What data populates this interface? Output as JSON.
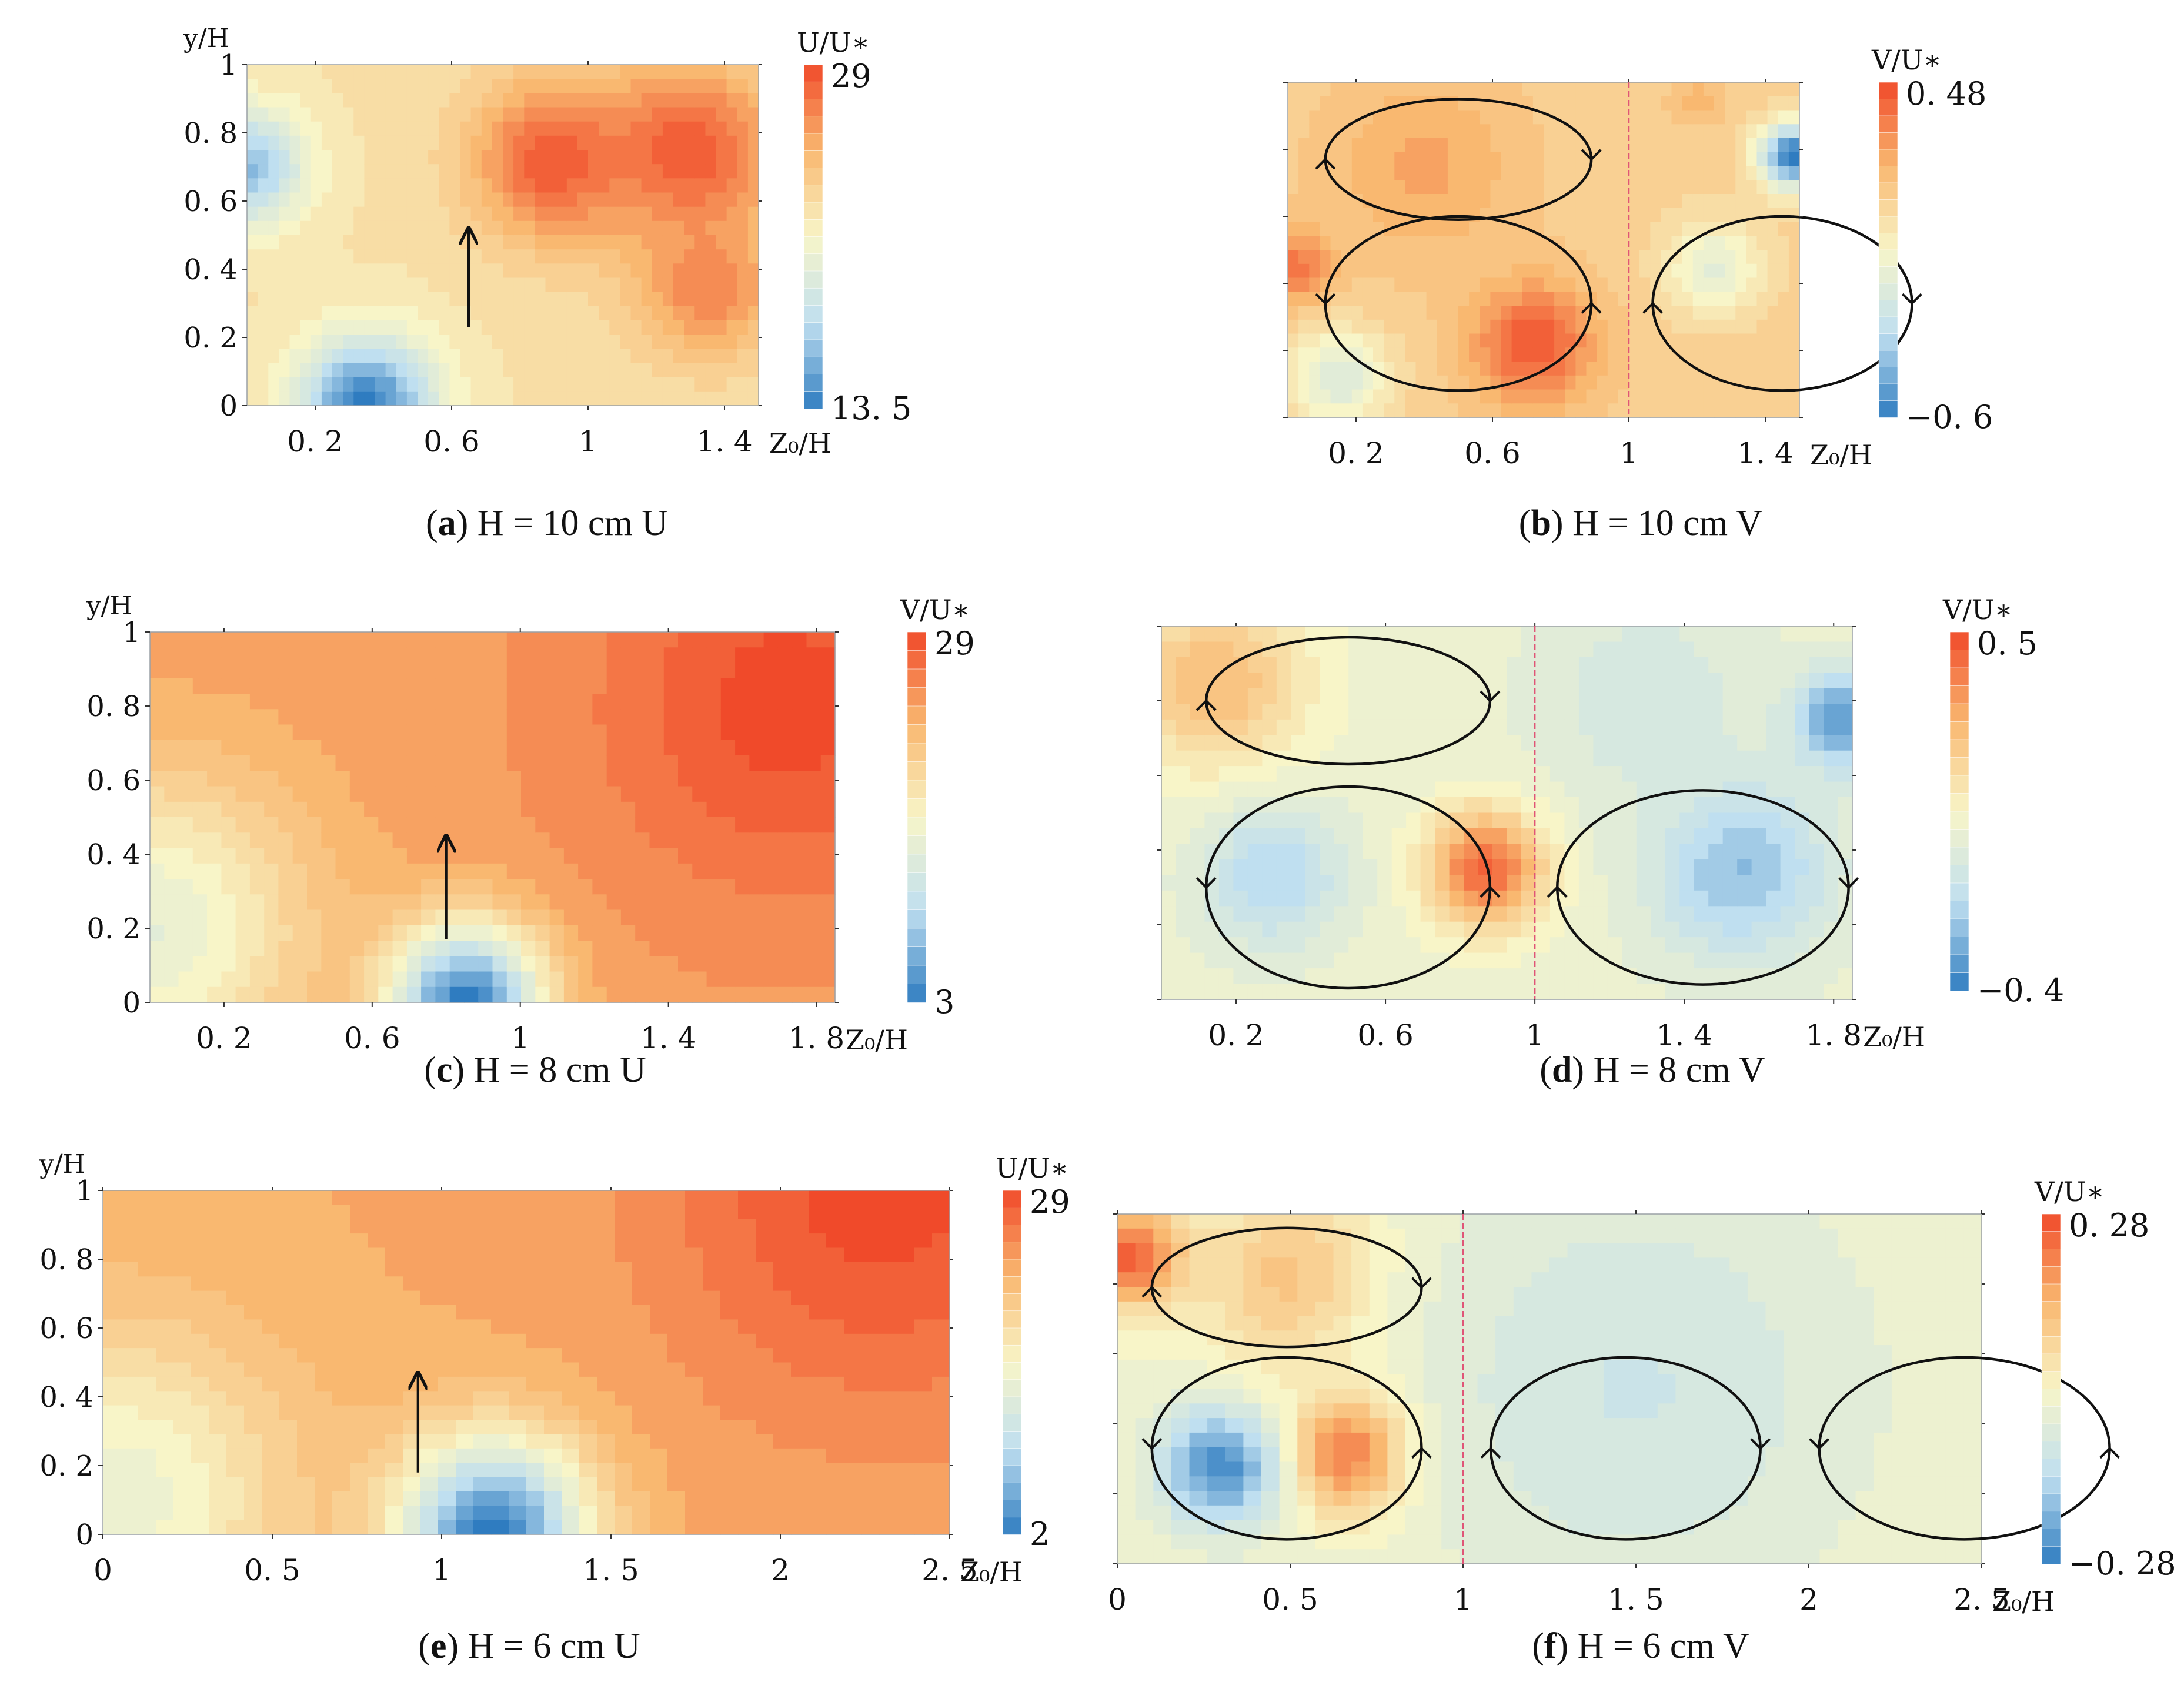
{
  "figure": {
    "panels": [
      {
        "id": "a",
        "letter": "a",
        "caption": "H = 10 cm U",
        "quantity": "U",
        "xlabel": "Z₀/H",
        "ylabel": "y/H",
        "xticks": [
          "0. 2",
          "0. 6",
          "1",
          "1. 4"
        ],
        "xtick_values": [
          0.2,
          0.6,
          1.0,
          1.4
        ],
        "xlim": [
          0,
          1.5
        ],
        "yticks": [
          "0",
          "0. 2",
          "0. 4",
          "0. 6",
          "0. 8",
          "1"
        ],
        "ytick_values": [
          0,
          0.2,
          0.4,
          0.6,
          0.8,
          1.0
        ],
        "ylim": [
          0,
          1
        ],
        "show_yticklabels": true,
        "colorbar": {
          "title": "U/U∗",
          "max_label": "29",
          "min_label": "13. 5",
          "max": 29,
          "min": 13.5,
          "levels": 20
        },
        "arrow": {
          "x": 0.65,
          "y0": 0.23,
          "y1": 0.52
        },
        "circulation_cells": [],
        "divider_x": null
      },
      {
        "id": "b",
        "letter": "b",
        "caption": "H = 10 cm V",
        "quantity": "V",
        "xlabel": "Z₀/H",
        "ylabel": "",
        "xticks": [
          "0. 2",
          "0. 6",
          "1",
          "1. 4"
        ],
        "xtick_values": [
          0.2,
          0.6,
          1.0,
          1.4
        ],
        "xlim": [
          0,
          1.5
        ],
        "yticks": [],
        "ytick_values": [
          0,
          0.2,
          0.4,
          0.6,
          0.8,
          1.0
        ],
        "ylim": [
          0,
          1
        ],
        "show_yticklabels": false,
        "colorbar": {
          "title": "V/U∗",
          "max_label": "0. 48",
          "min_label": "−0. 6",
          "max": 0.48,
          "min": -0.6,
          "levels": 20
        },
        "arrow": null,
        "circulation_cells": [
          {
            "cx": 0.5,
            "cy": 0.77,
            "rx": 0.39,
            "ry": 0.18,
            "rotation": "clockwise"
          },
          {
            "cx": 0.5,
            "cy": 0.34,
            "rx": 0.39,
            "ry": 0.26,
            "rotation": "counterclockwise"
          },
          {
            "cx": 1.45,
            "cy": 0.34,
            "rx": 0.38,
            "ry": 0.26,
            "rotation": "clockwise"
          }
        ],
        "divider_x": 1.0
      },
      {
        "id": "c",
        "letter": "c",
        "caption": "H = 8 cm U",
        "quantity": "U",
        "xlabel": "Z₀/H",
        "ylabel": "y/H",
        "xticks": [
          "0. 2",
          "0. 6",
          "1",
          "1. 4",
          "1. 8"
        ],
        "xtick_values": [
          0.2,
          0.6,
          1.0,
          1.4,
          1.8
        ],
        "xlim": [
          0,
          1.85
        ],
        "yticks": [
          "0",
          "0. 2",
          "0. 4",
          "0. 6",
          "0. 8",
          "1"
        ],
        "ytick_values": [
          0,
          0.2,
          0.4,
          0.6,
          0.8,
          1.0
        ],
        "ylim": [
          0,
          1
        ],
        "show_yticklabels": true,
        "colorbar": {
          "title": "V/U∗",
          "max_label": "29",
          "min_label": "3",
          "max": 29,
          "min": 3,
          "levels": 20
        },
        "arrow": {
          "x": 0.8,
          "y0": 0.17,
          "y1": 0.45
        },
        "circulation_cells": [],
        "divider_x": null
      },
      {
        "id": "d",
        "letter": "d",
        "caption": "H = 8 cm V",
        "quantity": "V",
        "xlabel": "Z₀/H",
        "ylabel": "",
        "xticks": [
          "0. 2",
          "0. 6",
          "1",
          "1. 4",
          "1. 8"
        ],
        "xtick_values": [
          0.2,
          0.6,
          1.0,
          1.4,
          1.8
        ],
        "xlim": [
          0,
          1.85
        ],
        "yticks": [],
        "ytick_values": [
          0,
          0.2,
          0.4,
          0.6,
          0.8,
          1.0
        ],
        "ylim": [
          0,
          1
        ],
        "show_yticklabels": false,
        "colorbar": {
          "title": "V/U∗",
          "max_label": "0. 5",
          "min_label": "−0. 4",
          "max": 0.5,
          "min": -0.4,
          "levels": 20
        },
        "arrow": null,
        "circulation_cells": [
          {
            "cx": 0.5,
            "cy": 0.8,
            "rx": 0.38,
            "ry": 0.17,
            "rotation": "clockwise"
          },
          {
            "cx": 0.5,
            "cy": 0.3,
            "rx": 0.38,
            "ry": 0.27,
            "rotation": "counterclockwise"
          },
          {
            "cx": 1.45,
            "cy": 0.3,
            "rx": 0.39,
            "ry": 0.26,
            "rotation": "clockwise"
          }
        ],
        "divider_x": 1.0
      },
      {
        "id": "e",
        "letter": "e",
        "caption": "H = 6 cm U",
        "quantity": "U",
        "xlabel": "Z₀/H",
        "ylabel": "y/H",
        "xticks": [
          "0",
          "0. 5",
          "1",
          "1. 5",
          "2",
          "2. 5"
        ],
        "xtick_values": [
          0,
          0.5,
          1.0,
          1.5,
          2.0,
          2.5
        ],
        "xlim": [
          0,
          2.5
        ],
        "yticks": [
          "0",
          "0. 2",
          "0. 4",
          "0. 6",
          "0. 8",
          "1"
        ],
        "ytick_values": [
          0,
          0.2,
          0.4,
          0.6,
          0.8,
          1.0
        ],
        "ylim": [
          0,
          1
        ],
        "show_yticklabels": true,
        "colorbar": {
          "title": "U/U∗",
          "max_label": "29",
          "min_label": "2",
          "max": 29,
          "min": 2,
          "levels": 20
        },
        "arrow": {
          "x": 0.93,
          "y0": 0.18,
          "y1": 0.47
        },
        "circulation_cells": [],
        "divider_x": null
      },
      {
        "id": "f",
        "letter": "f",
        "caption": "H = 6 cm V",
        "quantity": "V",
        "xlabel": "Z₀/H",
        "ylabel": "",
        "xticks": [
          "0",
          "0. 5",
          "1",
          "1. 5",
          "2",
          "2. 5"
        ],
        "xtick_values": [
          0,
          0.5,
          1.0,
          1.5,
          2.0,
          2.5
        ],
        "xlim": [
          0,
          2.5
        ],
        "yticks": [],
        "ytick_values": [
          0,
          0.2,
          0.4,
          0.6,
          0.8,
          1.0
        ],
        "ylim": [
          0,
          1
        ],
        "show_yticklabels": false,
        "colorbar": {
          "title": "V/U∗",
          "max_label": "0. 28",
          "min_label": "−0. 28",
          "max": 0.28,
          "min": -0.28,
          "levels": 20
        },
        "arrow": null,
        "circulation_cells": [
          {
            "cx": 0.49,
            "cy": 0.79,
            "rx": 0.39,
            "ry": 0.17,
            "rotation": "clockwise"
          },
          {
            "cx": 0.49,
            "cy": 0.33,
            "rx": 0.39,
            "ry": 0.26,
            "rotation": "counterclockwise"
          },
          {
            "cx": 1.47,
            "cy": 0.33,
            "rx": 0.39,
            "ry": 0.26,
            "rotation": "clockwise"
          },
          {
            "cx": 2.45,
            "cy": 0.33,
            "rx": 0.42,
            "ry": 0.26,
            "rotation": "counterclockwise"
          }
        ],
        "divider_x": 1.0
      }
    ]
  },
  "chart_data": [
    {
      "type": "heatmap",
      "title": "(a) H = 10 cm U",
      "xlabel": "Z₀/H",
      "ylabel": "y/H",
      "colorbar_label": "U/U∗",
      "value_range": [
        13.5,
        29
      ],
      "xlim": [
        0,
        1.5
      ],
      "ylim": [
        0,
        1
      ],
      "field": [
        {
          "x": 0.9,
          "y": 0.72,
          "value": 28.5,
          "sigma": 0.17
        },
        {
          "x": 1.3,
          "y": 0.74,
          "value": 28.5,
          "sigma": 0.19
        },
        {
          "x": 1.35,
          "y": 0.35,
          "value": 27,
          "sigma": 0.15
        },
        {
          "x": 0.35,
          "y": 0.0,
          "value": 13.5,
          "sigma": 0.14
        },
        {
          "x": 0.0,
          "y": 0.7,
          "value": 16,
          "sigma": 0.12
        }
      ],
      "background_value": 22.5
    },
    {
      "type": "heatmap",
      "title": "(b) H = 10 cm V",
      "xlabel": "Z₀/H",
      "ylabel": "",
      "colorbar_label": "V/U∗",
      "value_range": [
        -0.6,
        0.48
      ],
      "xlim": [
        0,
        1.5
      ],
      "ylim": [
        0,
        1
      ],
      "field": [
        {
          "x": 0.72,
          "y": 0.22,
          "value": 0.45,
          "sigma": 0.13
        },
        {
          "x": 0.02,
          "y": 0.45,
          "value": 0.38,
          "sigma": 0.08
        },
        {
          "x": 0.4,
          "y": 0.75,
          "value": 0.25,
          "sigma": 0.2
        },
        {
          "x": 1.48,
          "y": 0.78,
          "value": -0.6,
          "sigma": 0.07
        },
        {
          "x": 0.15,
          "y": 0.12,
          "value": -0.2,
          "sigma": 0.1
        },
        {
          "x": 1.25,
          "y": 0.45,
          "value": -0.15,
          "sigma": 0.1
        },
        {
          "x": 1.2,
          "y": 0.95,
          "value": 0.2,
          "sigma": 0.06
        }
      ],
      "background_value": 0.1
    },
    {
      "type": "heatmap",
      "title": "(c) H = 8 cm U",
      "xlabel": "Z₀/H",
      "ylabel": "y/H",
      "colorbar_label": "V/U∗",
      "value_range": [
        3,
        29
      ],
      "xlim": [
        0,
        1.85
      ],
      "ylim": [
        0,
        1
      ],
      "field": [
        {
          "x": 1.72,
          "y": 0.8,
          "value": 29,
          "sigma": 0.35
        },
        {
          "x": 0.85,
          "y": 0.0,
          "value": 3,
          "sigma": 0.15
        },
        {
          "x": 0.0,
          "y": 0.2,
          "value": 14,
          "sigma": 0.3
        }
      ],
      "background_value": 24
    },
    {
      "type": "heatmap",
      "title": "(d) H = 8 cm V",
      "xlabel": "Z₀/H",
      "ylabel": "",
      "colorbar_label": "V/U∗",
      "value_range": [
        -0.4,
        0.5
      ],
      "xlim": [
        0,
        1.85
      ],
      "ylim": [
        0,
        1
      ],
      "field": [
        {
          "x": 0.87,
          "y": 0.35,
          "value": 0.45,
          "sigma": 0.11
        },
        {
          "x": 0.15,
          "y": 0.85,
          "value": 0.25,
          "sigma": 0.17
        },
        {
          "x": 0.3,
          "y": 0.33,
          "value": -0.2,
          "sigma": 0.13
        },
        {
          "x": 1.55,
          "y": 0.35,
          "value": -0.25,
          "sigma": 0.17
        },
        {
          "x": 1.82,
          "y": 0.75,
          "value": -0.35,
          "sigma": 0.09
        },
        {
          "x": 1.3,
          "y": 0.8,
          "value": -0.1,
          "sigma": 0.2
        }
      ],
      "background_value": 0.0
    },
    {
      "type": "heatmap",
      "title": "(e) H = 6 cm U",
      "xlabel": "Z₀/H",
      "ylabel": "y/H",
      "colorbar_label": "U/U∗",
      "value_range": [
        2,
        29
      ],
      "xlim": [
        0,
        2.5
      ],
      "ylim": [
        0,
        1
      ],
      "field": [
        {
          "x": 2.3,
          "y": 1.0,
          "value": 29,
          "sigma": 0.45
        },
        {
          "x": 1.15,
          "y": 0.0,
          "value": 2,
          "sigma": 0.2
        },
        {
          "x": 0.05,
          "y": 0.1,
          "value": 14,
          "sigma": 0.35
        }
      ],
      "background_value": 23
    },
    {
      "type": "heatmap",
      "title": "(f) H = 6 cm V",
      "xlabel": "Z₀/H",
      "ylabel": "",
      "colorbar_label": "V/U∗",
      "value_range": [
        -0.28,
        0.28
      ],
      "xlim": [
        0,
        2.5
      ],
      "ylim": [
        0,
        1
      ],
      "field": [
        {
          "x": 0.67,
          "y": 0.32,
          "value": 0.28,
          "sigma": 0.12
        },
        {
          "x": 0.05,
          "y": 0.88,
          "value": 0.26,
          "sigma": 0.1
        },
        {
          "x": 0.3,
          "y": 0.28,
          "value": -0.26,
          "sigma": 0.12
        },
        {
          "x": 0.5,
          "y": 0.82,
          "value": 0.12,
          "sigma": 0.18
        },
        {
          "x": 1.5,
          "y": 0.5,
          "value": -0.1,
          "sigma": 0.45
        }
      ],
      "background_value": -0.02
    }
  ],
  "colors": {
    "low": "#2f7cc0",
    "mid_low": "#bfdff0",
    "mid": "#f8f5c8",
    "mid_high": "#f9b870",
    "high": "#f04a2a",
    "contour": "#222222",
    "arrow": "#111111",
    "divider": "#e05577"
  }
}
